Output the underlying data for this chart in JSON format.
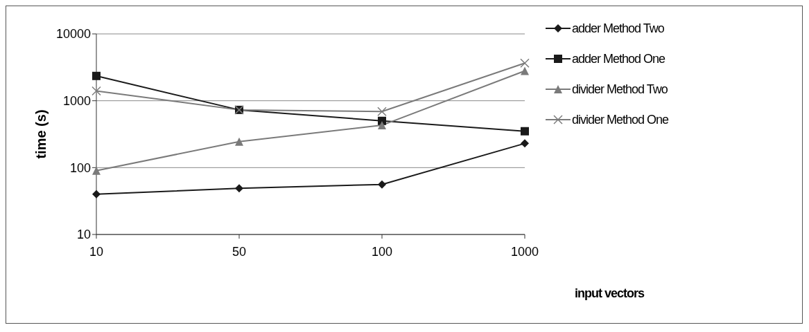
{
  "chart_data": {
    "type": "line",
    "xlabel": "input vectors",
    "ylabel": "time (s)",
    "categories": [
      "10",
      "50",
      "100",
      "1000"
    ],
    "series": [
      {
        "name": "adder Method Two",
        "color": "#1a1a1a",
        "marker": "diamond",
        "values": [
          40,
          49,
          56,
          230
        ]
      },
      {
        "name": "adder Method One",
        "color": "#1a1a1a",
        "marker": "square",
        "values": [
          2350,
          730,
          500,
          350
        ]
      },
      {
        "name": "divider Method Two",
        "color": "#7a7a7a",
        "marker": "triangle",
        "values": [
          90,
          245,
          430,
          2800
        ]
      },
      {
        "name": "divider Method One",
        "color": "#7a7a7a",
        "marker": "cross",
        "values": [
          1400,
          730,
          690,
          3650
        ]
      }
    ],
    "log": true,
    "ylim": [
      10,
      10000
    ],
    "yticks": [
      10,
      100,
      1000,
      10000
    ],
    "grid": "y",
    "legend": "right",
    "line_style": "solid"
  }
}
